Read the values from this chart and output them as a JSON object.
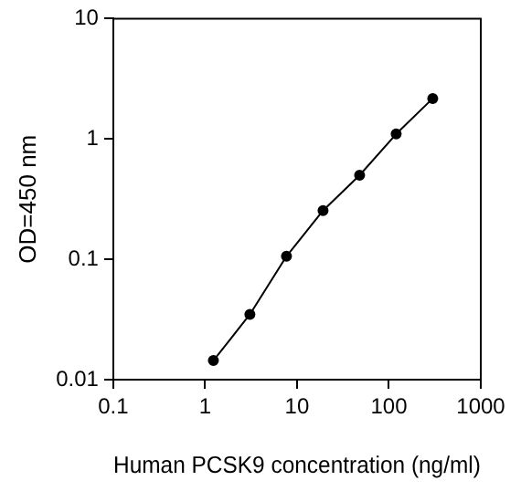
{
  "chart_data": {
    "type": "line",
    "xlabel": "Human PCSK9 concentration (ng/ml)",
    "ylabel": "OD=450 nm",
    "x": [
      1.23,
      3.07,
      7.68,
      19.2,
      48,
      120,
      300
    ],
    "series": [
      {
        "color": "#000000",
        "values": [
          0.0144,
          0.0349,
          0.106,
          0.254,
          0.5,
          1.1,
          2.17
        ]
      }
    ],
    "xlim": [
      0.1,
      1000
    ],
    "xticks": [
      0.1,
      1,
      10,
      100,
      1000
    ],
    "ylim": [
      0.01,
      10
    ],
    "yticks": [
      0.01,
      0.1,
      1,
      10
    ],
    "log": "xy",
    "grid": false,
    "legend": false,
    "marker": "circle",
    "line_style": "solid"
  }
}
